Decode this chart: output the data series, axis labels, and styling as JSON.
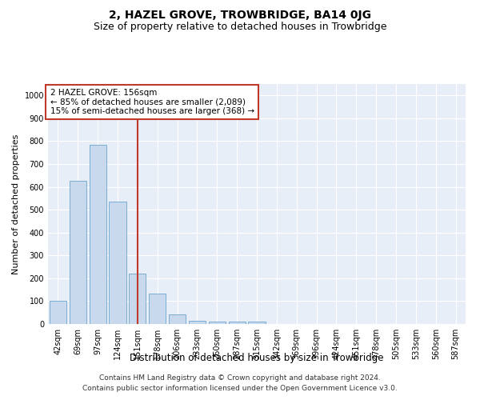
{
  "title": "2, HAZEL GROVE, TROWBRIDGE, BA14 0JG",
  "subtitle": "Size of property relative to detached houses in Trowbridge",
  "xlabel": "Distribution of detached houses by size in Trowbridge",
  "ylabel": "Number of detached properties",
  "categories": [
    "42sqm",
    "69sqm",
    "97sqm",
    "124sqm",
    "151sqm",
    "178sqm",
    "206sqm",
    "233sqm",
    "260sqm",
    "287sqm",
    "315sqm",
    "342sqm",
    "369sqm",
    "396sqm",
    "424sqm",
    "451sqm",
    "478sqm",
    "505sqm",
    "533sqm",
    "560sqm",
    "587sqm"
  ],
  "values": [
    100,
    625,
    785,
    535,
    220,
    133,
    42,
    15,
    10,
    10,
    10,
    0,
    0,
    0,
    0,
    0,
    0,
    0,
    0,
    0,
    0
  ],
  "bar_color": "#c8d9ee",
  "bar_edge_color": "#7aadd4",
  "vline_x_index": 4,
  "vline_color": "#c0392b",
  "annotation_text": "2 HAZEL GROVE: 156sqm\n← 85% of detached houses are smaller (2,089)\n15% of semi-detached houses are larger (368) →",
  "annotation_box_color": "#ffffff",
  "annotation_box_edge_color": "#c0392b",
  "ylim": [
    0,
    1050
  ],
  "yticks": [
    0,
    100,
    200,
    300,
    400,
    500,
    600,
    700,
    800,
    900,
    1000
  ],
  "background_color": "#e8eef8",
  "footer_line1": "Contains HM Land Registry data © Crown copyright and database right 2024.",
  "footer_line2": "Contains public sector information licensed under the Open Government Licence v3.0.",
  "title_fontsize": 10,
  "subtitle_fontsize": 9,
  "xlabel_fontsize": 8.5,
  "ylabel_fontsize": 8,
  "tick_fontsize": 7,
  "annotation_fontsize": 7.5,
  "footer_fontsize": 6.5
}
